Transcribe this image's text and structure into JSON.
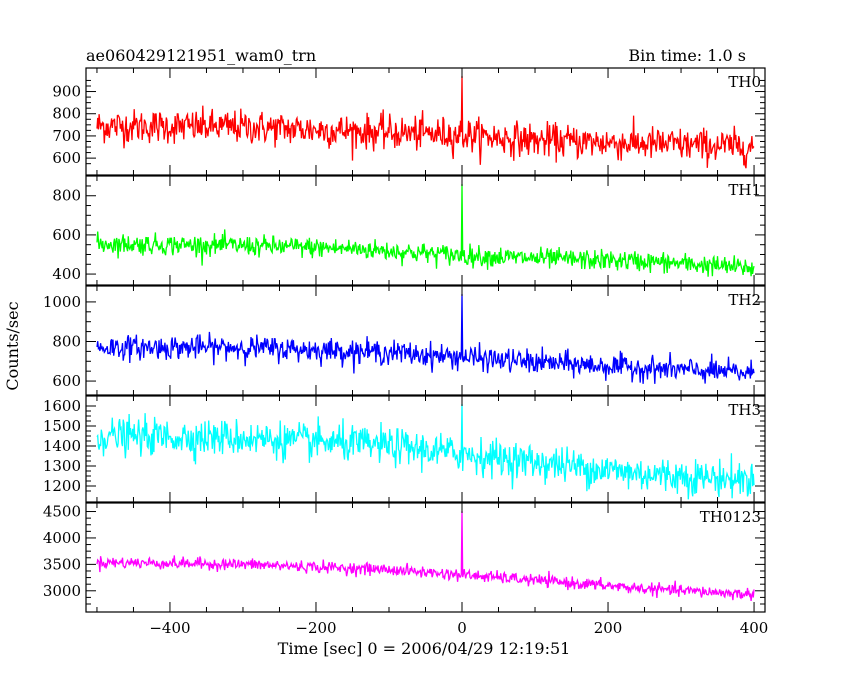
{
  "header": {
    "title": "ae060429121951_wam0_trn",
    "bin_time": "Bin time: 1.0 s"
  },
  "chart_data": {
    "type": "line",
    "title": "ae060429121951_wam0_trn",
    "xlabel": "Time [sec] 0 = 2006/04/29 12:19:51",
    "ylabel": "Counts/sec",
    "xlim": [
      -515,
      415
    ],
    "x_ticks": [
      -400,
      -200,
      0,
      200,
      400
    ],
    "x_tick_labels": [
      "−400",
      "−200",
      "0",
      "200",
      "400"
    ],
    "x_start": -500,
    "x_end": 400,
    "bin_seconds": 1.0,
    "burst_time": 0,
    "panels": [
      {
        "name": "TH0",
        "color": "#ff0000",
        "ylim": [
          560,
          970
        ],
        "yticks": [
          600,
          700,
          800,
          900
        ],
        "trend": [
          [
            -500,
            745
          ],
          [
            -300,
            740
          ],
          [
            -100,
            715
          ],
          [
            0,
            705
          ],
          [
            100,
            680
          ],
          [
            250,
            665
          ],
          [
            400,
            650
          ]
        ],
        "noise": 38,
        "spike": 970
      },
      {
        "name": "TH1",
        "color": "#00ff00",
        "ylim": [
          385,
          860
        ],
        "yticks": [
          400,
          600,
          800
        ],
        "trend": [
          [
            -500,
            555
          ],
          [
            -300,
            545
          ],
          [
            -150,
            530
          ],
          [
            0,
            495
          ],
          [
            100,
            480
          ],
          [
            250,
            465
          ],
          [
            400,
            430
          ]
        ],
        "noise": 26,
        "spike": 860
      },
      {
        "name": "TH2",
        "color": "#0000ff",
        "ylim": [
          570,
          1040
        ],
        "yticks": [
          600,
          800,
          1000
        ],
        "trend": [
          [
            -500,
            770
          ],
          [
            -300,
            770
          ],
          [
            -100,
            745
          ],
          [
            0,
            720
          ],
          [
            100,
            695
          ],
          [
            250,
            665
          ],
          [
            400,
            640
          ]
        ],
        "noise": 30,
        "spike": 1040
      },
      {
        "name": "TH3",
        "color": "#00ffff",
        "ylim": [
          1160,
          1610
        ],
        "yticks": [
          1200,
          1300,
          1400,
          1500,
          1600
        ],
        "trend": [
          [
            -500,
            1450
          ],
          [
            -300,
            1440
          ],
          [
            -100,
            1400
          ],
          [
            0,
            1360
          ],
          [
            100,
            1320
          ],
          [
            250,
            1260
          ],
          [
            400,
            1230
          ]
        ],
        "noise": 45,
        "spike": 1610
      },
      {
        "name": "TH0123",
        "color": "#ff00ff",
        "ylim": [
          2750,
          4510
        ],
        "yticks": [
          3000,
          3500,
          4000,
          4500
        ],
        "trend": [
          [
            -500,
            3540
          ],
          [
            -300,
            3500
          ],
          [
            -100,
            3400
          ],
          [
            0,
            3300
          ],
          [
            100,
            3200
          ],
          [
            250,
            3040
          ],
          [
            400,
            2930
          ]
        ],
        "noise": 55,
        "spike": 4510
      }
    ]
  }
}
